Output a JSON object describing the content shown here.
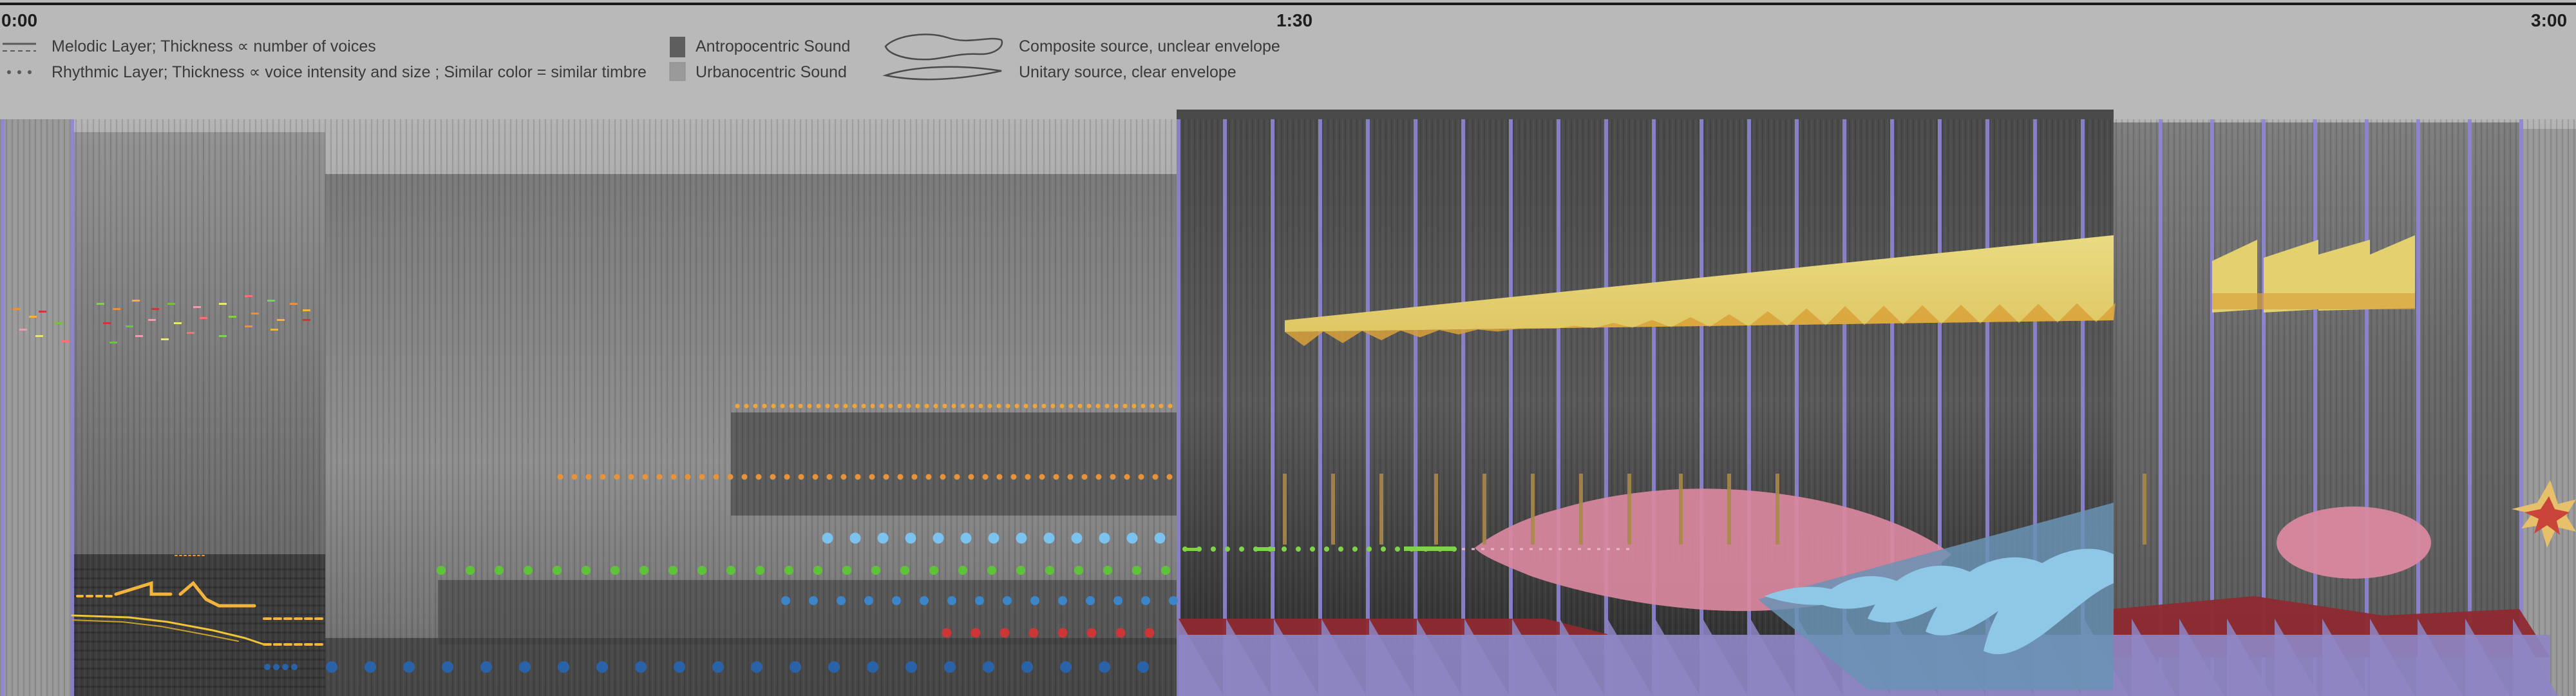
{
  "timeline": {
    "marks": [
      {
        "label": "0:00"
      },
      {
        "label": "1:30"
      },
      {
        "label": "3:00"
      }
    ]
  },
  "legend": {
    "melodic": "Melodic Layer;   Thickness  ∝  number of voices",
    "rhythmic": "Rhythmic Layer; Thickness  ∝  voice intensity and size ; Similar color = similar timbre",
    "antropo": "Antropocentric  Sound",
    "urbano": "Urbanocentric  Sound",
    "composite": "Composite source, unclear envelope",
    "unitary": "Unitary source, clear envelope"
  },
  "colors": {
    "pulse": "#8f86d4",
    "orange_dots": "#e8923a",
    "amber_dots": "#f0a53a",
    "light_blue_dots": "#7cc2ee",
    "green_dots": "#5fc33a",
    "blue_dots": "#3b85c8",
    "dark_blue_dots": "#2a62a8",
    "red_dots": "#cc3636",
    "yellow_wedge": "#e8d67a",
    "pink_blob": "#d9889f",
    "crescents": "#8fc7e6",
    "base_violet": "#8e86c3",
    "dark_red": "#8e2a30",
    "melody_yellow": "#f2b43c"
  }
}
